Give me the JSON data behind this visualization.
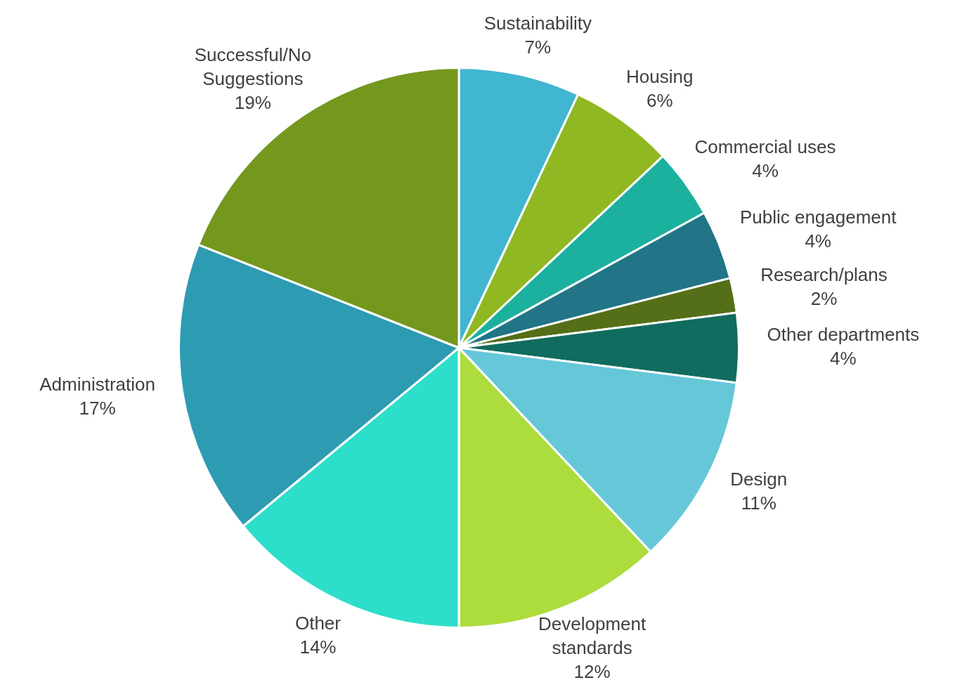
{
  "chart_data": {
    "type": "pie",
    "categories": [
      "Sustainability",
      "Housing",
      "Commercial uses",
      "Public engagement",
      "Research/plans",
      "Other departments",
      "Design",
      "Development standards",
      "Other",
      "Administration",
      "Successful/No Suggestions"
    ],
    "values": [
      7,
      6,
      4,
      4,
      2,
      4,
      11,
      12,
      14,
      17,
      19
    ],
    "value_labels": [
      "7%",
      "6%",
      "4%",
      "4%",
      "2%",
      "4%",
      "11%",
      "12%",
      "14%",
      "17%",
      "19%"
    ],
    "colors": [
      "#41b6d0",
      "#8fb822",
      "#1cb09e",
      "#217586",
      "#546f17",
      "#106c5e",
      "#66c7d9",
      "#addc3d",
      "#2ddfcb",
      "#2d9bb2",
      "#74971e"
    ],
    "legend": false
  }
}
